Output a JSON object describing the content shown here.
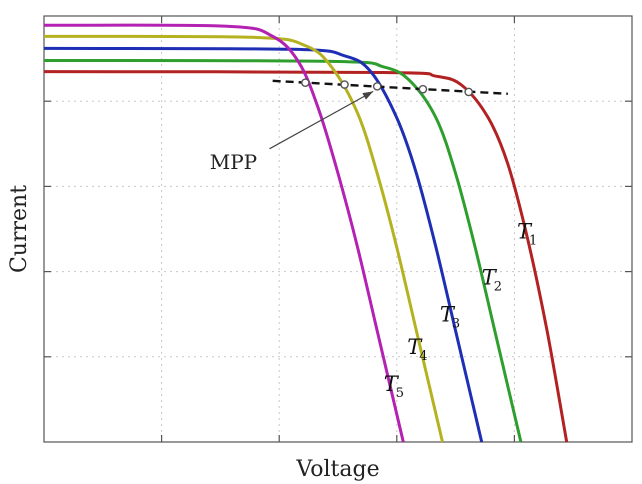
{
  "chart_data": {
    "type": "line",
    "xlabel": "Voltage",
    "ylabel": "Current",
    "xlim": [
      0,
      4.5
    ],
    "ylim": [
      0,
      4.6
    ],
    "grid": true,
    "series": [
      {
        "name": "T1",
        "label_main": "T",
        "label_sub": "1",
        "color": "#b22222",
        "x": [
          0,
          2.6,
          3.0,
          3.2,
          3.4,
          3.55,
          3.7,
          3.85,
          4.0
        ],
        "y": [
          4.0,
          3.99,
          3.95,
          3.85,
          3.5,
          3.0,
          2.2,
          1.2,
          0
        ]
      },
      {
        "name": "T2",
        "label_main": "T",
        "label_sub": "2",
        "color": "#2e9e2e",
        "x": [
          0,
          2.2,
          2.6,
          2.8,
          3.0,
          3.15,
          3.3,
          3.45,
          3.65
        ],
        "y": [
          4.12,
          4.11,
          4.05,
          3.9,
          3.5,
          2.9,
          2.1,
          1.2,
          0
        ]
      },
      {
        "name": "T3",
        "label_main": "T",
        "label_sub": "3",
        "color": "#1f2fb5",
        "x": [
          0,
          1.9,
          2.3,
          2.5,
          2.7,
          2.85,
          3.0,
          3.15,
          3.35
        ],
        "y": [
          4.25,
          4.24,
          4.17,
          4.0,
          3.5,
          2.9,
          2.1,
          1.2,
          0
        ]
      },
      {
        "name": "T4",
        "label_main": "T",
        "label_sub": "4",
        "color": "#b5b222",
        "x": [
          0,
          1.6,
          2.0,
          2.2,
          2.4,
          2.55,
          2.7,
          2.85,
          3.05
        ],
        "y": [
          4.38,
          4.37,
          4.28,
          4.05,
          3.55,
          2.9,
          2.1,
          1.2,
          0
        ]
      },
      {
        "name": "T5",
        "label_main": "T",
        "label_sub": "5",
        "color": "#b322b3",
        "x": [
          0,
          1.4,
          1.75,
          1.95,
          2.1,
          2.25,
          2.4,
          2.55,
          2.75
        ],
        "y": [
          4.5,
          4.49,
          4.38,
          4.1,
          3.6,
          2.9,
          2.1,
          1.2,
          0
        ]
      }
    ],
    "mpp": {
      "label": "MPP",
      "points": [
        {
          "x": 2.0,
          "y": 3.88
        },
        {
          "x": 2.3,
          "y": 3.86
        },
        {
          "x": 2.55,
          "y": 3.84
        },
        {
          "x": 2.9,
          "y": 3.81
        },
        {
          "x": 3.25,
          "y": 3.78
        }
      ],
      "trend_x": [
        1.75,
        3.55
      ],
      "trend_y": [
        3.9,
        3.76
      ]
    },
    "curve_label_positions": [
      {
        "series": "T1",
        "x": 3.62,
        "y": 2.2
      },
      {
        "series": "T2",
        "x": 3.35,
        "y": 1.7
      },
      {
        "series": "T3",
        "x": 3.03,
        "y": 1.3
      },
      {
        "series": "T4",
        "x": 2.78,
        "y": 0.95
      },
      {
        "series": "T5",
        "x": 2.6,
        "y": 0.55
      }
    ],
    "mpp_label_pos": {
      "x": 1.45,
      "y": 2.95
    },
    "mpp_arrow_to": {
      "x": 2.55,
      "y": 3.84
    }
  }
}
